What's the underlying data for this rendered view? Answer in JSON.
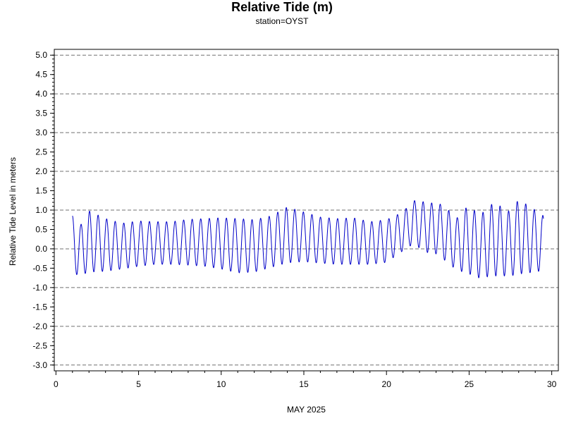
{
  "chart_data": {
    "type": "line",
    "title": "Relative Tide (m)",
    "subtitle": "station=OYST",
    "xlabel": "MAY 2025",
    "ylabel": "Relative Tide Level in meters",
    "xlim": [
      -0.1,
      30.4
    ],
    "ylim": [
      -3.15,
      5.15
    ],
    "x_ticks": [
      0,
      5,
      10,
      15,
      20,
      25,
      30
    ],
    "x_minor_step": 1,
    "y_ticks": [
      -3.0,
      -2.5,
      -2.0,
      -1.5,
      -1.0,
      -0.5,
      0.0,
      0.5,
      1.0,
      1.5,
      2.0,
      2.5,
      3.0,
      3.5,
      4.0,
      4.5,
      5.0
    ],
    "y_ticks_labels": [
      "-3.0",
      "-2.5",
      "-2.0",
      "-1.5",
      "-1.0",
      "-0.5",
      "0.0",
      "0.5",
      "1.0",
      "1.5",
      "2.0",
      "2.5",
      "3.0",
      "3.5",
      "4.0",
      "4.5",
      "5.0"
    ],
    "y_minor_step": 0.1,
    "grid": {
      "horizontal_dashed_at": [
        -3,
        -2,
        -1,
        0,
        1,
        2,
        3,
        4,
        5
      ]
    },
    "series": [
      {
        "color": "#0000c8",
        "x_start": 1.0,
        "x_end": 29.5,
        "tidal_period_days": 0.5175,
        "first_high_day": 1.0,
        "envelope": [
          {
            "day": 1.0,
            "high": 0.85,
            "low": -0.65
          },
          {
            "day": 1.5,
            "high": 0.62,
            "low": -0.68
          },
          {
            "day": 2.0,
            "high": 0.98,
            "low": -0.6
          },
          {
            "day": 3.0,
            "high": 0.78,
            "low": -0.58
          },
          {
            "day": 4.0,
            "high": 0.66,
            "low": -0.52
          },
          {
            "day": 5.0,
            "high": 0.72,
            "low": -0.45
          },
          {
            "day": 6.0,
            "high": 0.7,
            "low": -0.4
          },
          {
            "day": 7.0,
            "high": 0.7,
            "low": -0.4
          },
          {
            "day": 8.0,
            "high": 0.76,
            "low": -0.42
          },
          {
            "day": 9.0,
            "high": 0.78,
            "low": -0.45
          },
          {
            "day": 10.0,
            "high": 0.8,
            "low": -0.52
          },
          {
            "day": 11.0,
            "high": 0.78,
            "low": -0.62
          },
          {
            "day": 12.0,
            "high": 0.75,
            "low": -0.6
          },
          {
            "day": 13.0,
            "high": 0.85,
            "low": -0.48
          },
          {
            "day": 14.0,
            "high": 1.08,
            "low": -0.36
          },
          {
            "day": 15.0,
            "high": 0.95,
            "low": -0.33
          },
          {
            "day": 16.0,
            "high": 0.82,
            "low": -0.37
          },
          {
            "day": 17.0,
            "high": 0.78,
            "low": -0.4
          },
          {
            "day": 18.0,
            "high": 0.8,
            "low": -0.4
          },
          {
            "day": 19.0,
            "high": 0.7,
            "low": -0.4
          },
          {
            "day": 20.0,
            "high": 0.75,
            "low": -0.35
          },
          {
            "day": 21.0,
            "high": 0.95,
            "low": -0.05
          },
          {
            "day": 21.6,
            "high": 1.25,
            "low": 0.12
          },
          {
            "day": 22.5,
            "high": 1.2,
            "low": -0.1
          },
          {
            "day": 23.3,
            "high": 1.15,
            "low": -0.15
          },
          {
            "day": 23.6,
            "high": 1.05,
            "low": -0.35
          },
          {
            "day": 24.3,
            "high": 0.8,
            "low": -0.55
          },
          {
            "day": 25.0,
            "high": 1.15,
            "low": -0.65
          },
          {
            "day": 25.6,
            "high": 0.85,
            "low": -0.75
          },
          {
            "day": 26.5,
            "high": 1.2,
            "low": -0.7
          },
          {
            "day": 27.5,
            "high": 0.95,
            "low": -0.7
          },
          {
            "day": 28.0,
            "high": 1.28,
            "low": -0.65
          },
          {
            "day": 29.0,
            "high": 1.0,
            "low": -0.6
          },
          {
            "day": 29.5,
            "high": 0.85,
            "low": -0.55
          }
        ]
      }
    ]
  }
}
